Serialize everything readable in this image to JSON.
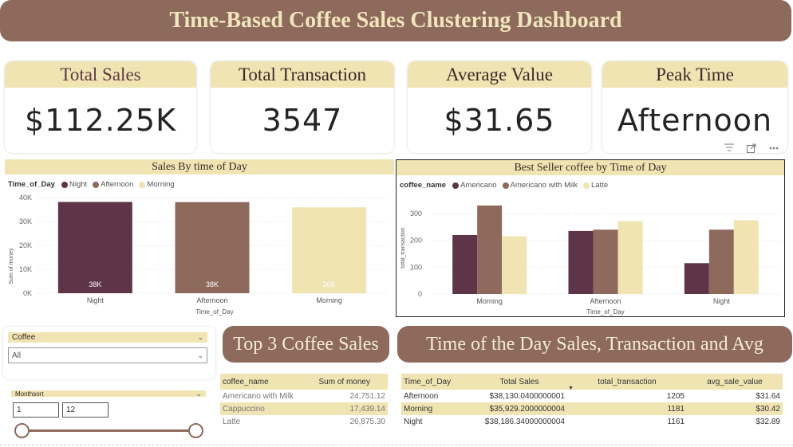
{
  "title": "Time-Based Coffee Sales Clustering Dashboard",
  "kpis": [
    {
      "label": "Total Sales",
      "value": "$112.25K"
    },
    {
      "label": "Total Transaction",
      "value": "3547"
    },
    {
      "label": "Average Value",
      "value": "$31.65"
    },
    {
      "label": "Peak Time",
      "value": "Afternoon"
    }
  ],
  "chart1": {
    "title": "Sales By time of Day",
    "legend_title": "Time_of_Day",
    "legend": [
      "Night",
      "Afternoon",
      "Morning"
    ],
    "colors": [
      "#5e3449",
      "#8e6a5d",
      "#efe4b2"
    ],
    "y_ticks": [
      "0K",
      "10K",
      "20K",
      "30K",
      "40K"
    ],
    "ylabel": "Sum of money",
    "xlabel": "Time_of_Day",
    "data_labels": [
      "38K",
      "38K",
      "36K"
    ]
  },
  "chart2": {
    "title": "Best Seller coffee by Time of Day",
    "legend_title": "coffee_name",
    "legend": [
      "Americano",
      "Americano with Milk",
      "Latte"
    ],
    "colors": [
      "#5e3449",
      "#8e6a5d",
      "#efe4b2"
    ],
    "y_ticks": [
      "0",
      "100",
      "200",
      "300"
    ],
    "ylabel": "total_transaction",
    "xlabel": "Time_of_Day"
  },
  "chart_data": [
    {
      "type": "bar",
      "title": "Sales By time of Day",
      "categories": [
        "Night",
        "Afternoon",
        "Morning"
      ],
      "values": [
        38186.34,
        38130.04,
        35929.2
      ],
      "xlabel": "Time_of_Day",
      "ylabel": "Sum of money",
      "ylim": [
        0,
        40000
      ],
      "grid": true,
      "legend_position": "top-left"
    },
    {
      "type": "bar",
      "title": "Best Seller coffee by Time of Day",
      "categories": [
        "Morning",
        "Afternoon",
        "Night"
      ],
      "series": [
        {
          "name": "Americano",
          "values": [
            220,
            235,
            115
          ]
        },
        {
          "name": "Americano with Milk",
          "values": [
            330,
            240,
            240
          ]
        },
        {
          "name": "Latte",
          "values": [
            215,
            272,
            275
          ]
        }
      ],
      "xlabel": "Time_of_Day",
      "ylabel": "total_transaction",
      "ylim": [
        0,
        340
      ],
      "grid": true,
      "legend_position": "top-left"
    }
  ],
  "slicers": {
    "coffee": {
      "label": "Coffee",
      "selected": "All"
    },
    "month": {
      "label": "Monthsort",
      "from": "1",
      "to": "12"
    }
  },
  "top3": {
    "title": "Top 3 Coffee Sales",
    "headers": [
      "coffee_name",
      "Sum of money"
    ],
    "rows": [
      [
        "Americano with Milk",
        "24,751.12"
      ],
      [
        "Cappuccino",
        "17,439.14"
      ],
      [
        "Latte",
        "26,875.30"
      ]
    ]
  },
  "tod_table": {
    "title": "Time of the Day Sales, Transaction and Avg",
    "headers": [
      "Time_of_Day",
      "Total Sales",
      "total_transaction",
      "avg_sale_value"
    ],
    "rows": [
      [
        "Afternoon",
        "$38,130.0400000001",
        "1205",
        "$31.64"
      ],
      [
        "Morning",
        "$35,929.2000000004",
        "1181",
        "$30.42"
      ],
      [
        "Night",
        "$38,186.34000000004",
        "1161",
        "$32.89"
      ]
    ]
  },
  "visual_icons": [
    "filter-icon",
    "focus-mode-icon",
    "more-options-icon"
  ]
}
